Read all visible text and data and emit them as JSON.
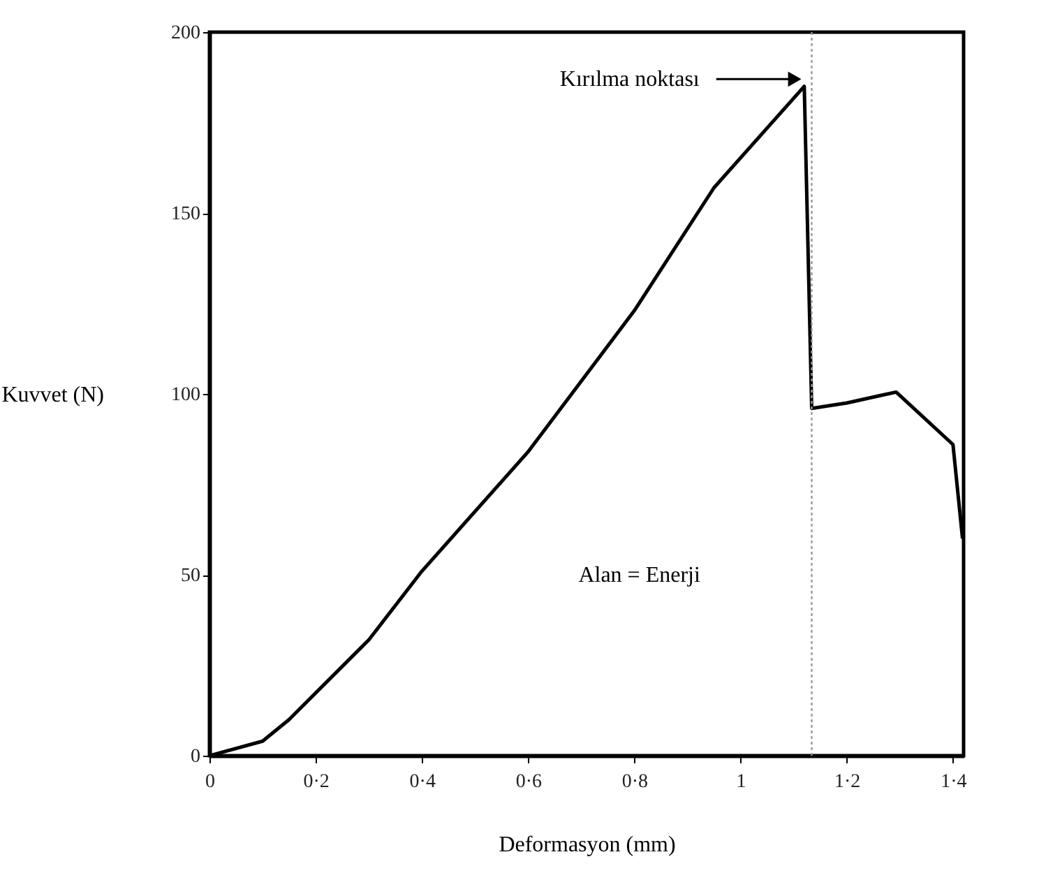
{
  "chart_data": {
    "type": "line",
    "xlabel": "Deformasyon (mm)",
    "ylabel": "Kuvvet (N)",
    "x": [
      0,
      0.1,
      0.15,
      0.3,
      0.4,
      0.6,
      0.8,
      0.95,
      1.12,
      1.134,
      1.2,
      1.293,
      1.4,
      1.418
    ],
    "series": [
      {
        "color": "#000000",
        "values": [
          0,
          4,
          10,
          32,
          51,
          84,
          123,
          157,
          185,
          96,
          97.5,
          100.5,
          86,
          60
        ]
      }
    ],
    "xlim": [
      0,
      1.42
    ],
    "ylim": [
      0,
      200
    ],
    "xticks": [
      0,
      {
        "value": 0.2,
        "label": "0·2"
      },
      {
        "value": 0.4,
        "label": "0·4"
      },
      {
        "value": 0.6,
        "label": "0·6"
      },
      {
        "value": 0.8,
        "label": "0·8"
      },
      1,
      {
        "value": 1.2,
        "label": "1·2"
      },
      {
        "value": 1.4,
        "label": "1·4"
      }
    ],
    "yticks": [
      0,
      50,
      100,
      150,
      200
    ],
    "ref_lines": [
      {
        "axis": "x",
        "value": 1.134,
        "color": "#999999",
        "line_style": "dotted"
      }
    ],
    "annotations": [
      "Kırılma noktası",
      "Alan = Enerji"
    ],
    "grid": false,
    "marker": "none",
    "line_style": "solid"
  }
}
